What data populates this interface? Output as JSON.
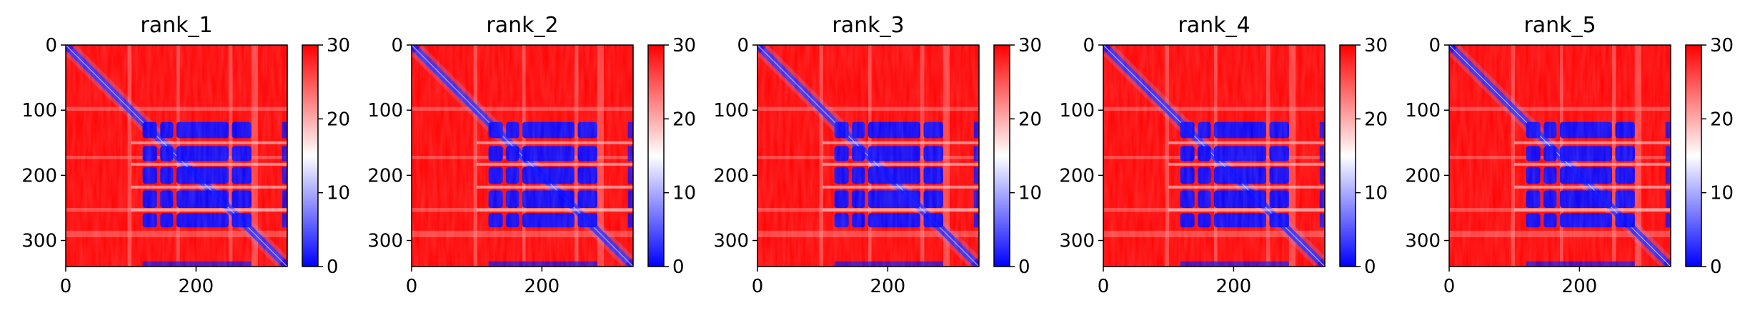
{
  "chart_data": [
    {
      "type": "heatmap",
      "title": "rank_1",
      "xticks": [
        0,
        200
      ],
      "yticks": [
        0,
        100,
        200,
        300
      ],
      "xlim": [
        0,
        340
      ],
      "ylim": [
        340,
        0
      ],
      "colorbar": {
        "ticks": [
          0,
          10,
          20,
          30
        ],
        "range": [
          0,
          30
        ],
        "colormap": "bwr"
      }
    },
    {
      "type": "heatmap",
      "title": "rank_2",
      "xticks": [
        0,
        200
      ],
      "yticks": [
        0,
        100,
        200,
        300
      ],
      "xlim": [
        0,
        340
      ],
      "ylim": [
        340,
        0
      ],
      "colorbar": {
        "ticks": [
          0,
          10,
          20,
          30
        ],
        "range": [
          0,
          30
        ],
        "colormap": "bwr"
      }
    },
    {
      "type": "heatmap",
      "title": "rank_3",
      "xticks": [
        0,
        200
      ],
      "yticks": [
        0,
        100,
        200,
        300
      ],
      "xlim": [
        0,
        340
      ],
      "ylim": [
        340,
        0
      ],
      "colorbar": {
        "ticks": [
          0,
          10,
          20,
          30
        ],
        "range": [
          0,
          30
        ],
        "colormap": "bwr"
      }
    },
    {
      "type": "heatmap",
      "title": "rank_4",
      "xticks": [
        0,
        200
      ],
      "yticks": [
        0,
        100,
        200,
        300
      ],
      "xlim": [
        0,
        340
      ],
      "ylim": [
        340,
        0
      ],
      "colorbar": {
        "ticks": [
          0,
          10,
          20,
          30
        ],
        "range": [
          0,
          30
        ],
        "colormap": "bwr"
      }
    },
    {
      "type": "heatmap",
      "title": "rank_5",
      "xticks": [
        0,
        200
      ],
      "yticks": [
        0,
        100,
        200,
        300
      ],
      "xlim": [
        0,
        340
      ],
      "ylim": [
        340,
        0
      ],
      "colorbar": {
        "ticks": [
          0,
          10,
          20,
          30
        ],
        "range": [
          0,
          30
        ],
        "colormap": "bwr"
      }
    }
  ],
  "colors": {
    "low": "#0000ff",
    "mid": "#ffffff",
    "high": "#ff0000"
  }
}
